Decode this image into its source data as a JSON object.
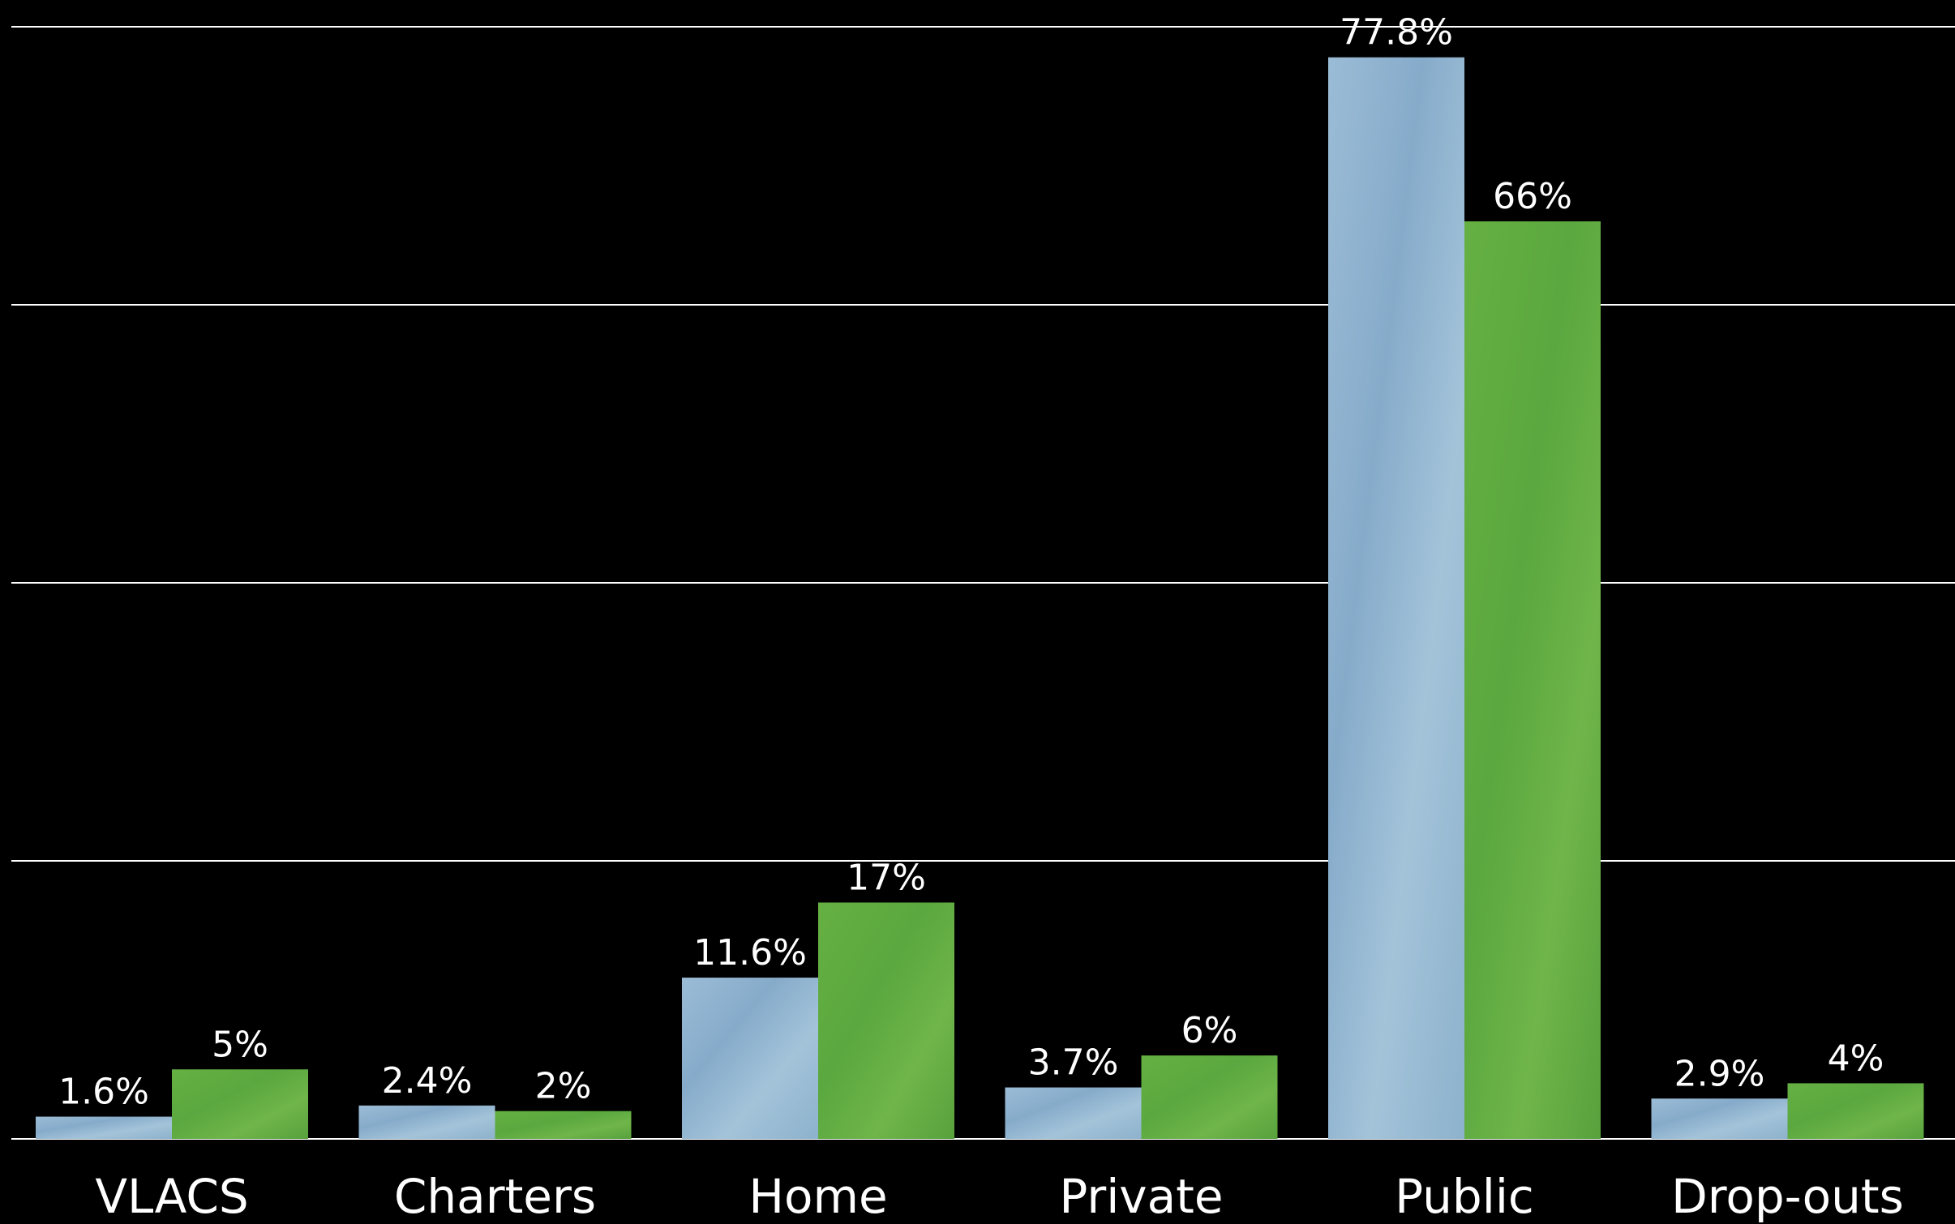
{
  "chart_data": {
    "type": "bar",
    "categories": [
      "VLACS",
      "Charters",
      "Home",
      "Private",
      "Public",
      "Drop-outs"
    ],
    "series": [
      {
        "values": [
          1.6,
          2.4,
          11.6,
          3.7,
          77.8,
          2.9
        ],
        "labels": [
          "1.6%",
          "2.4%",
          "11.6%",
          "3.7%",
          "77.8%",
          "2.9%"
        ],
        "color": "#8fb3d1"
      },
      {
        "values": [
          5,
          2,
          17,
          6,
          66,
          4
        ],
        "labels": [
          "5%",
          "2%",
          "17%",
          "6%",
          "66%",
          "4%"
        ],
        "color": "#5fac43"
      }
    ],
    "ylim": [
      0,
      80
    ],
    "gridlines": [
      20,
      40,
      60,
      80
    ],
    "grid": true,
    "background": "#000000",
    "gridline_color": "#ffffff"
  }
}
